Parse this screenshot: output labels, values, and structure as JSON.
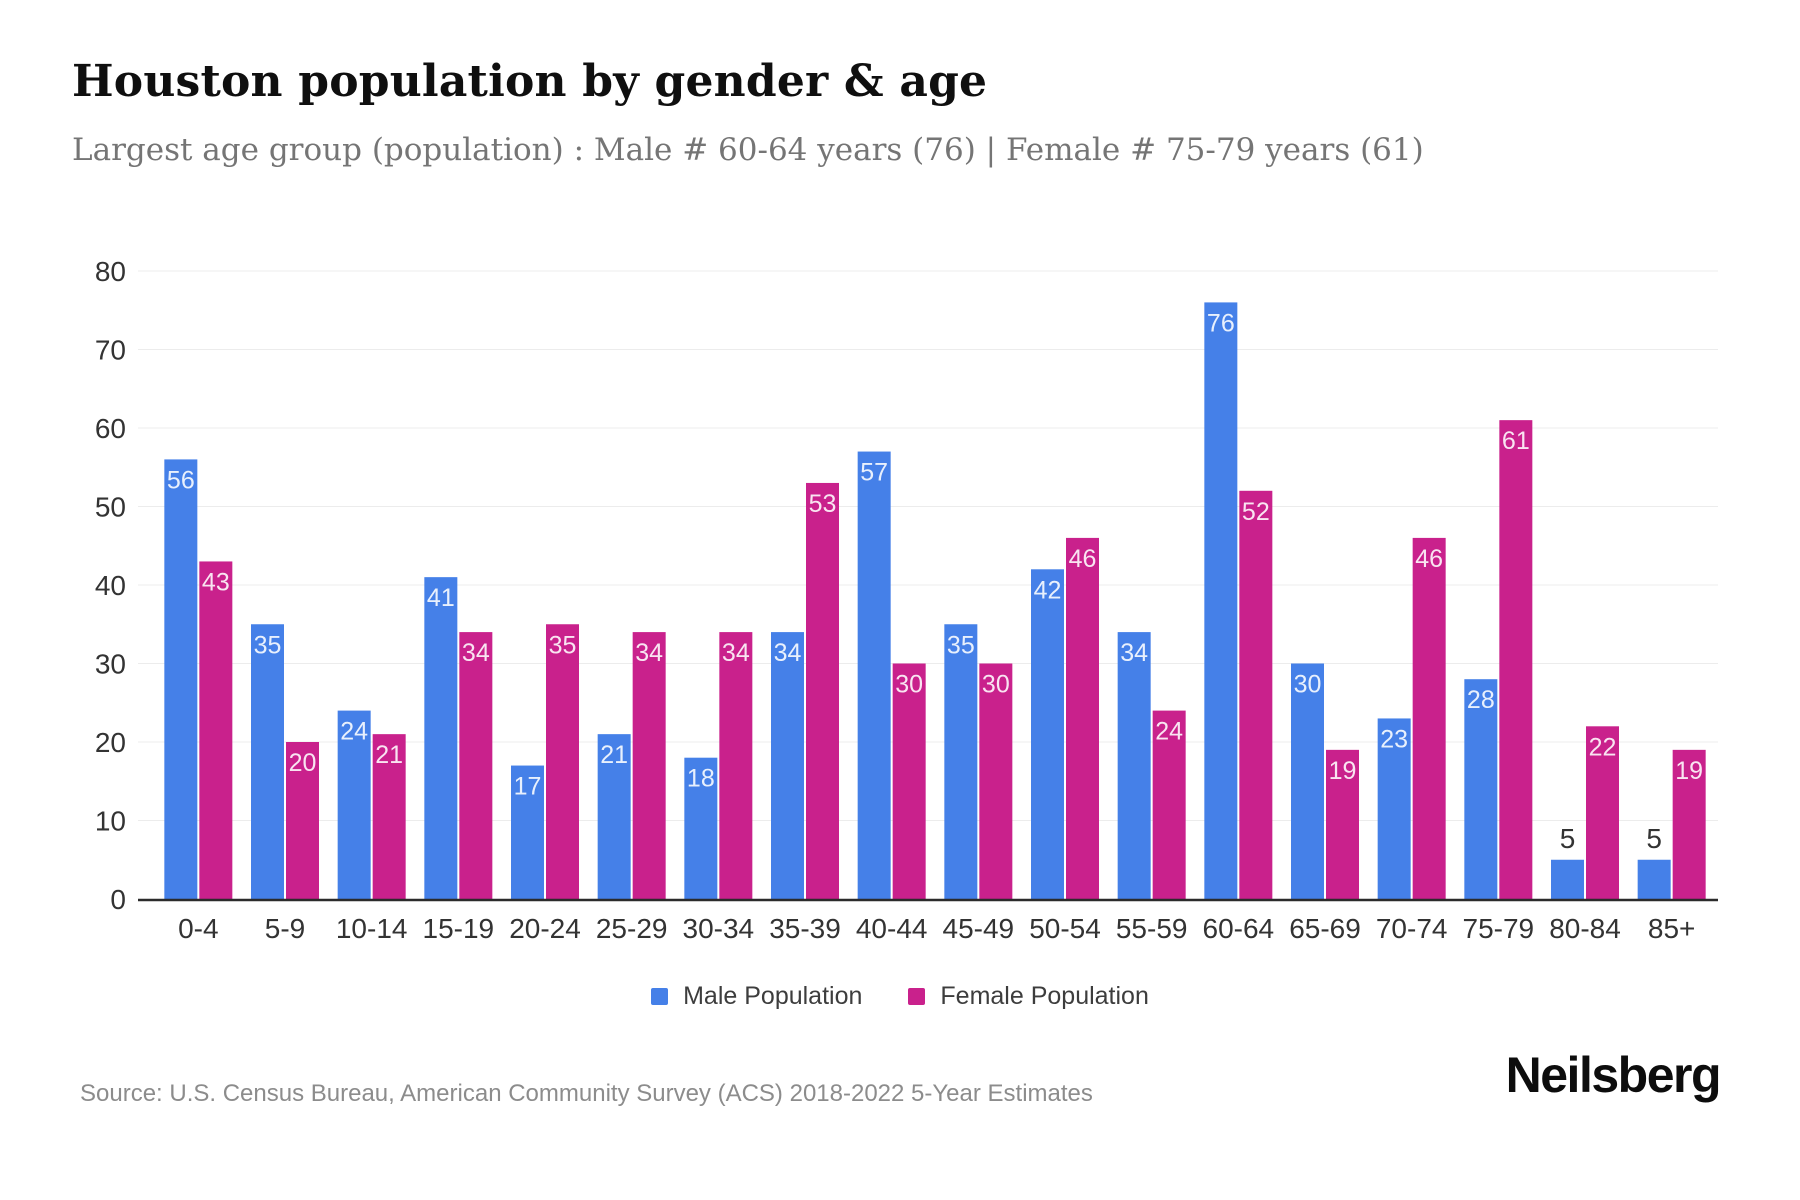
{
  "header": {
    "title": "Houston population by gender & age",
    "subtitle": "Largest age group (population) : Male # 60-64 years (76) | Female # 75-79 years (61)"
  },
  "chart_data": {
    "type": "bar",
    "title": "Houston population by gender & age",
    "categories": [
      "0-4",
      "5-9",
      "10-14",
      "15-19",
      "20-24",
      "25-29",
      "30-34",
      "35-39",
      "40-44",
      "45-49",
      "50-54",
      "55-59",
      "60-64",
      "65-69",
      "70-74",
      "75-79",
      "80-84",
      "85+"
    ],
    "series": [
      {
        "name": "Male Population",
        "color": "#4580e8",
        "values": [
          56,
          35,
          24,
          41,
          17,
          21,
          18,
          34,
          57,
          35,
          42,
          34,
          76,
          30,
          23,
          28,
          5,
          5
        ]
      },
      {
        "name": "Female Population",
        "color": "#c9218c",
        "values": [
          43,
          20,
          21,
          34,
          35,
          34,
          34,
          53,
          30,
          30,
          46,
          24,
          52,
          19,
          46,
          61,
          22,
          19
        ]
      }
    ],
    "xlabel": "",
    "ylabel": "",
    "ylim": [
      0,
      80
    ],
    "yticks": [
      0,
      10,
      20,
      30,
      40,
      50,
      60,
      70,
      80
    ],
    "grid": true,
    "legend_position": "bottom",
    "colors": {
      "grid_line": "#ececec",
      "axis_line": "#2b2b2b",
      "tick_label": "#333333",
      "bar_label_inside": "#ffffff",
      "bar_label_outside": "#333333"
    }
  },
  "legend": {
    "items": [
      {
        "label": "Male Population",
        "color": "#4580e8"
      },
      {
        "label": "Female Population",
        "color": "#c9218c"
      }
    ]
  },
  "footer": {
    "source": "Source: U.S. Census Bureau, American Community Survey (ACS) 2018-2022 5-Year Estimates",
    "brand": "Neilsberg"
  }
}
